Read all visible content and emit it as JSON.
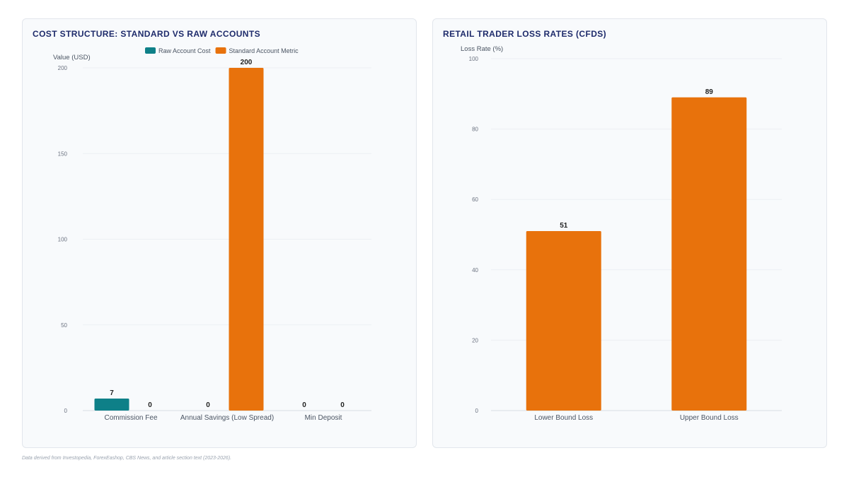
{
  "footnote": "Data derived from Investopedia, ForexEashop, CBS News, and article section text (2023-2026).",
  "colors": {
    "raw": "#0e8088",
    "standard": "#e8720c",
    "title": "#1e2b6b"
  },
  "chart_data": [
    {
      "type": "bar",
      "title": "COST STRUCTURE: STANDARD VS RAW ACCOUNTS",
      "ylabel": "Value (USD)",
      "xlabel": "",
      "ylim": [
        0,
        200
      ],
      "yticks": [
        0,
        50,
        100,
        150,
        200
      ],
      "grid": true,
      "legend_position": "top-center",
      "categories": [
        "Commission Fee",
        "Annual Savings (Low Spread)",
        "Min Deposit"
      ],
      "series": [
        {
          "name": "Raw Account Cost",
          "color": "#0e8088",
          "values": [
            7,
            0,
            0
          ]
        },
        {
          "name": "Standard Account Metric",
          "color": "#e8720c",
          "values": [
            0,
            200,
            0
          ]
        }
      ]
    },
    {
      "type": "bar",
      "title": "RETAIL TRADER LOSS RATES (CFDS)",
      "ylabel": "Loss Rate (%)",
      "xlabel": "",
      "ylim": [
        0,
        100
      ],
      "yticks": [
        0,
        20,
        40,
        60,
        80,
        100
      ],
      "grid": true,
      "categories": [
        "Lower Bound Loss",
        "Upper Bound Loss"
      ],
      "series": [
        {
          "color": "#e8720c",
          "values": [
            51,
            89
          ]
        }
      ]
    }
  ]
}
